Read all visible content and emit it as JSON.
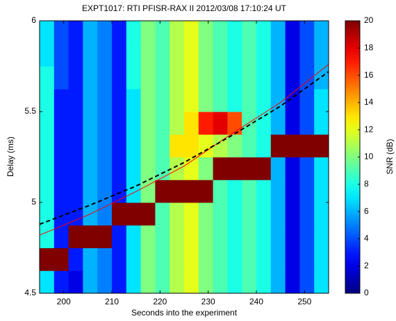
{
  "chart_data": {
    "type": "heatmap",
    "title": "EXPT1017: RTI PFISR-RAX II 2012/03/08 17:10:24 UT",
    "x_label": "Seconds into the experiment",
    "y_label": "Delay (ms)",
    "colorbar_label": "SNR (dB)",
    "colormap": "jet",
    "xlim": [
      195,
      255
    ],
    "xticks": [
      200,
      210,
      220,
      230,
      240,
      250
    ],
    "ylim": [
      4.5,
      6
    ],
    "yticks": [
      4.5,
      5,
      5.5,
      6
    ],
    "clim": [
      0,
      20
    ],
    "cticks": [
      0,
      2,
      4,
      6,
      8,
      10,
      12,
      14,
      16,
      18,
      20
    ],
    "x": [
      196.5,
      199.5,
      202.5,
      205.5,
      208.5,
      211.5,
      214.5,
      217.5,
      220.5,
      223.5,
      226.5,
      229.5,
      232.5,
      235.5,
      238.5,
      241.5,
      244.5,
      247.5,
      250.5,
      253.5
    ],
    "y": [
      4.5625,
      4.6875,
      4.8125,
      4.9375,
      5.0625,
      5.1875,
      5.3125,
      5.4375,
      5.5625,
      5.6875,
      5.8125,
      5.9375
    ],
    "z": [
      [
        7,
        3,
        2,
        6,
        5,
        3,
        7,
        10,
        9,
        11,
        12,
        10,
        9,
        8,
        9,
        8,
        6,
        2,
        4,
        7
      ],
      [
        20,
        20,
        3,
        6,
        5,
        3,
        7,
        10,
        9,
        11,
        12,
        10,
        9,
        8,
        9,
        8,
        6,
        2,
        4,
        7
      ],
      [
        8,
        3,
        20,
        20,
        20,
        3,
        7,
        10,
        9,
        11,
        12,
        10,
        9,
        8,
        9,
        8,
        6,
        2,
        4,
        7
      ],
      [
        8,
        3,
        3,
        6,
        5,
        20,
        20,
        20,
        9,
        11,
        12,
        10,
        9,
        8,
        9,
        8,
        6,
        2,
        4,
        7
      ],
      [
        8,
        3,
        3,
        6,
        5,
        3,
        7,
        10,
        20,
        20,
        20,
        20,
        9,
        8,
        9,
        8,
        6,
        2,
        4,
        7
      ],
      [
        8,
        3,
        3,
        6,
        5,
        3,
        7,
        10,
        9,
        11,
        12,
        10,
        20,
        20,
        20,
        20,
        6,
        2,
        4,
        7
      ],
      [
        8,
        3,
        3,
        6,
        5,
        3,
        7,
        10,
        9,
        13,
        13,
        12,
        11,
        10,
        9,
        8,
        20,
        20,
        20,
        20
      ],
      [
        8,
        3,
        3,
        6,
        5,
        3,
        7,
        10,
        9,
        11,
        13,
        17,
        18,
        16,
        9,
        8,
        6,
        2,
        4,
        7
      ],
      [
        8,
        3,
        3,
        6,
        5,
        3,
        7,
        10,
        9,
        11,
        12,
        10,
        9,
        8,
        9,
        8,
        6,
        2,
        4,
        7
      ],
      [
        8,
        4,
        3,
        6,
        5,
        3,
        8,
        10,
        9,
        11,
        12,
        10,
        9,
        8,
        9,
        8,
        6,
        2,
        4,
        6
      ],
      [
        7,
        4,
        3,
        6,
        5,
        3,
        8,
        10,
        9,
        11,
        12,
        10,
        9,
        8,
        9,
        8,
        6,
        2,
        4,
        6
      ],
      [
        7,
        4,
        3,
        6,
        5,
        3,
        8,
        10,
        9,
        11,
        12,
        10,
        9,
        8,
        9,
        8,
        6,
        2,
        4,
        6
      ]
    ],
    "lines": [
      {
        "color": "#ff0000",
        "dashed": false,
        "x": [
          195,
          205,
          215,
          225,
          235,
          245,
          255
        ],
        "values": [
          4.82,
          4.93,
          5.06,
          5.2,
          5.38,
          5.55,
          5.76
        ]
      },
      {
        "color": "#000000",
        "dashed": true,
        "x": [
          195,
          205,
          215,
          225,
          235,
          245,
          255
        ],
        "values": [
          4.88,
          4.98,
          5.09,
          5.22,
          5.37,
          5.53,
          5.72
        ]
      }
    ]
  }
}
